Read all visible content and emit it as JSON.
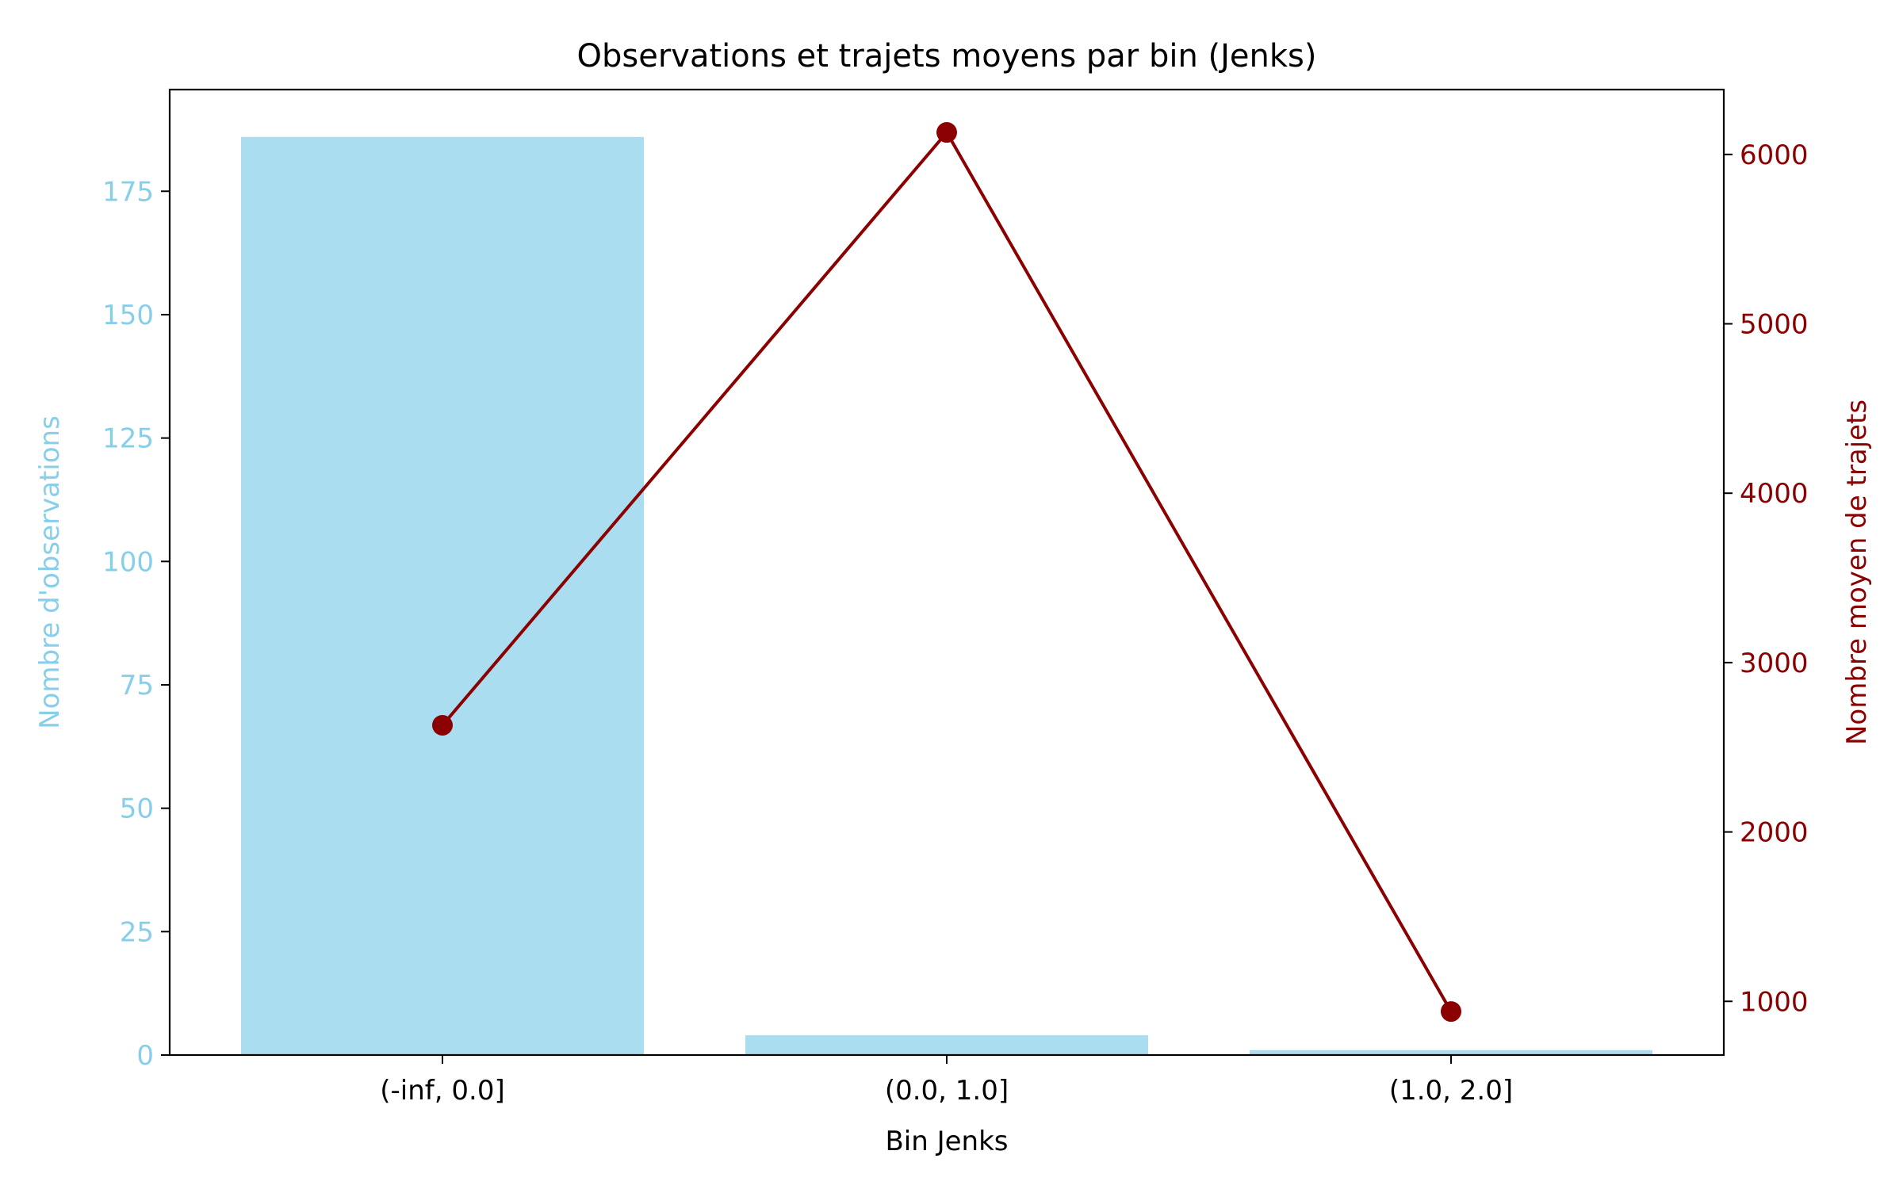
{
  "chart_data": {
    "type": "bar",
    "title": "Observations et trajets moyens par bin (Jenks)",
    "xlabel": "Bin Jenks",
    "ylabel_left": "Nombre d'observations",
    "ylabel_right": "Nombre moyen de trajets",
    "categories": [
      "(-inf, 0.0]",
      "(0.0, 1.0]",
      "(1.0, 2.0]"
    ],
    "series": [
      {
        "axis": "left",
        "type": "bar",
        "values": [
          186,
          4,
          1
        ],
        "color": "#87CEEB"
      },
      {
        "axis": "right",
        "type": "line",
        "values": [
          2630,
          6130,
          940
        ],
        "color": "#8B0000"
      }
    ],
    "ylim_left": [
      0,
      195.6
    ],
    "ylim_right": [
      683,
      6383
    ],
    "yticks_left": [
      0,
      25,
      50,
      75,
      100,
      125,
      150,
      175
    ],
    "yticks_right": [
      1000,
      2000,
      3000,
      4000,
      5000,
      6000
    ],
    "grid": false,
    "colors": {
      "left_axis": "#87CEEB",
      "right_axis": "#8B0000",
      "text": "#000000"
    }
  }
}
